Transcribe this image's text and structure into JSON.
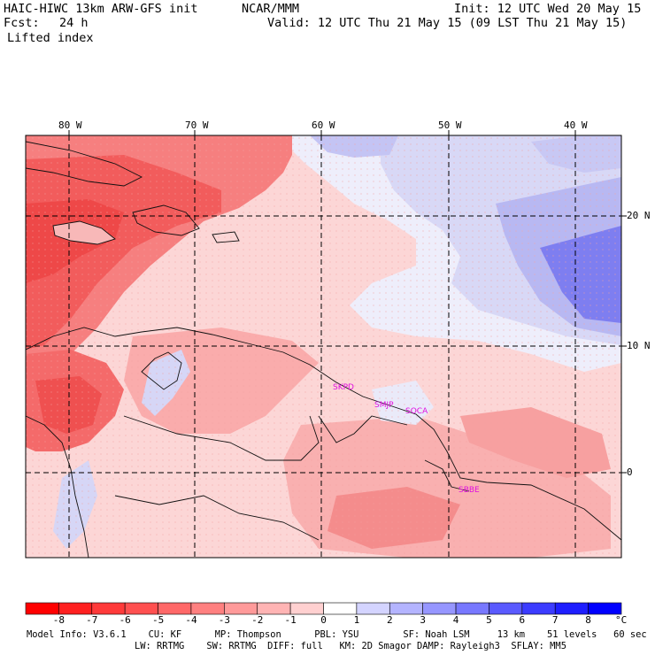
{
  "header": {
    "model": "HAIC-HIWC 13km ARW-GFS init",
    "org": "NCAR/MMM",
    "init": "Init: 12 UTC Wed 20 May 15",
    "fcst_label": "Fcst:",
    "fcst_value": "24 h",
    "valid": "Valid: 12 UTC Thu 21 May 15 (09 LST Thu 21 May 15)",
    "field": "Lifted index"
  },
  "map": {
    "lon_labels": [
      "80 W",
      "70 W",
      "60 W",
      "50 W",
      "40 W"
    ],
    "lat_labels": [
      "20 N",
      "10 N",
      "0"
    ],
    "stations": [
      "SKPD",
      "SMJP",
      "SOCA",
      "SBBE"
    ],
    "colors": {
      "strong_unstable": "#f04848",
      "unstable": "#f67f7f",
      "weak_unstable": "#faaeae",
      "slight_unstable": "#fdd2d2",
      "neutral": "#ffffff",
      "slight_stable": "#dcdcf8",
      "stable": "#b4b4f2",
      "strong_stable": "#6e6ef0"
    }
  },
  "colorbar": {
    "labels": [
      "-8",
      "-7",
      "-6",
      "-5",
      "-4",
      "-3",
      "-2",
      "-1",
      "0",
      "1",
      "2",
      "3",
      "4",
      "5",
      "6",
      "7",
      "8"
    ],
    "unit": "°C",
    "colors": [
      "#ff0000",
      "#ff2020",
      "#ff3a3a",
      "#ff5050",
      "#ff6868",
      "#ff8080",
      "#ff9a9a",
      "#ffb4b4",
      "#ffd0d0",
      "#ffffff",
      "#d4d4ff",
      "#b4b4ff",
      "#9696ff",
      "#7878ff",
      "#5a5aff",
      "#3c3cff",
      "#1e1eff",
      "#0000ff"
    ]
  },
  "footer": {
    "line1": "Model Info: V3.6.1    CU: KF      MP: Thompson      PBL: YSU        SF: Noah LSM     13 km    51 levels   60 sec",
    "line2": "LW: RRTMG    SW: RRTMG  DIFF: full   KM: 2D Smagor DAMP: Rayleigh3  SFLAY: MM5"
  }
}
